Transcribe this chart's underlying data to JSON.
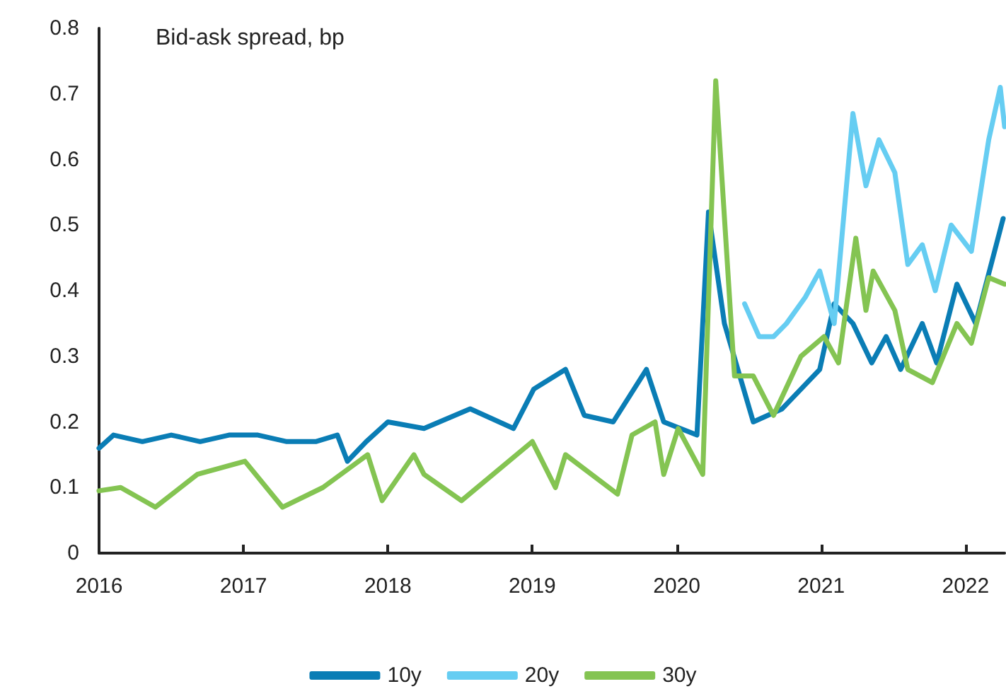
{
  "chart_data": {
    "type": "line",
    "title": "Bid-ask spread, bp",
    "xlim": [
      2016,
      2022.27
    ],
    "xticks": [
      2016,
      2017,
      2018,
      2019,
      2020,
      2021,
      2022
    ],
    "ylim": [
      0,
      0.8
    ],
    "yticks": [
      0,
      0.1,
      0.2,
      0.3,
      0.4,
      0.5,
      0.6,
      0.7,
      0.8
    ],
    "grid": false,
    "legend": "bottom",
    "marker": "none",
    "line_style": "solid",
    "series": [
      {
        "name": "10y",
        "color": "#0a7db5",
        "x": [
          2016,
          2016.1,
          2016.3,
          2016.5,
          2016.7,
          2016.9,
          2017.1,
          2017.3,
          2017.5,
          2017.65,
          2017.72,
          2017.85,
          2018.0,
          2018.25,
          2018.57,
          2018.87,
          2019.01,
          2019.23,
          2019.36,
          2019.56,
          2019.79,
          2019.91,
          2020.14,
          2020.22,
          2020.33,
          2020.53,
          2020.73,
          2020.99,
          2021.09,
          2021.22,
          2021.35,
          2021.45,
          2021.55,
          2021.7,
          2021.8,
          2021.94,
          2022.07,
          2022.26
        ],
        "values": [
          0.16,
          0.18,
          0.17,
          0.18,
          0.17,
          0.18,
          0.18,
          0.17,
          0.17,
          0.18,
          0.14,
          0.17,
          0.2,
          0.19,
          0.22,
          0.19,
          0.25,
          0.28,
          0.21,
          0.2,
          0.28,
          0.2,
          0.18,
          0.52,
          0.35,
          0.2,
          0.22,
          0.28,
          0.38,
          0.35,
          0.29,
          0.33,
          0.28,
          0.35,
          0.29,
          0.41,
          0.35,
          0.51
        ]
      },
      {
        "name": "20y",
        "color": "#66cdf2",
        "x": [
          2020.47,
          2020.57,
          2020.67,
          2020.76,
          2020.89,
          2020.99,
          2021.09,
          2021.22,
          2021.31,
          2021.4,
          2021.51,
          2021.6,
          2021.7,
          2021.79,
          2021.9,
          2022.04,
          2022.16,
          2022.24,
          2022.27
        ],
        "values": [
          0.38,
          0.33,
          0.33,
          0.35,
          0.39,
          0.43,
          0.35,
          0.67,
          0.56,
          0.63,
          0.58,
          0.44,
          0.47,
          0.4,
          0.5,
          0.46,
          0.63,
          0.71,
          0.65
        ]
      },
      {
        "name": "30y",
        "color": "#84c452",
        "x": [
          2016,
          2016.15,
          2016.39,
          2016.68,
          2017.01,
          2017.27,
          2017.55,
          2017.86,
          2017.96,
          2018.18,
          2018.25,
          2018.51,
          2019.0,
          2019.16,
          2019.23,
          2019.59,
          2019.69,
          2019.85,
          2019.91,
          2020.01,
          2020.18,
          2020.27,
          2020.4,
          2020.53,
          2020.67,
          2020.86,
          2021.02,
          2021.12,
          2021.24,
          2021.31,
          2021.36,
          2021.51,
          2021.6,
          2021.77,
          2021.94,
          2022.04,
          2022.16,
          2022.27
        ],
        "values": [
          0.095,
          0.1,
          0.07,
          0.12,
          0.14,
          0.07,
          0.1,
          0.15,
          0.08,
          0.15,
          0.12,
          0.08,
          0.17,
          0.1,
          0.15,
          0.09,
          0.18,
          0.2,
          0.12,
          0.19,
          0.12,
          0.72,
          0.27,
          0.27,
          0.21,
          0.3,
          0.33,
          0.29,
          0.48,
          0.37,
          0.43,
          0.37,
          0.28,
          0.26,
          0.35,
          0.32,
          0.42,
          0.41
        ]
      }
    ]
  }
}
